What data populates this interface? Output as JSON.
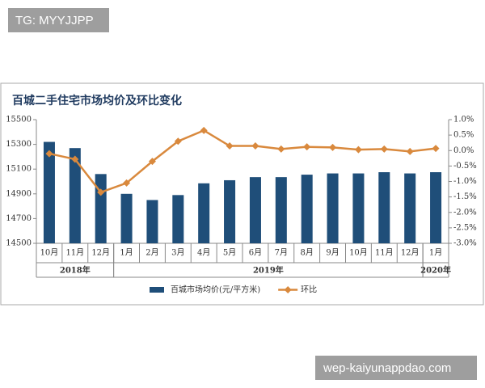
{
  "watermarks": [
    "TG: MYYJJPP",
    "wep-kaiyunappdao.com"
  ],
  "chart_data": {
    "type": "bar-line",
    "title": "百城二手住宅市场均价及环比变化",
    "categories": [
      "10月",
      "11月",
      "12月",
      "1月",
      "2月",
      "3月",
      "4月",
      "5月",
      "6月",
      "7月",
      "8月",
      "9月",
      "10月",
      "11月",
      "12月",
      "1月"
    ],
    "x_groups": [
      {
        "label": "2018年",
        "count": 3
      },
      {
        "label": "2019年",
        "count": 12
      },
      {
        "label": "2020年",
        "count": 1
      }
    ],
    "series": [
      {
        "name": "百城市场均价(元/平方米)",
        "type": "bar",
        "color": "#1f4e79",
        "values": [
          15320,
          15270,
          15060,
          14900,
          14850,
          14890,
          14985,
          15010,
          15035,
          15035,
          15055,
          15065,
          15065,
          15075,
          15065,
          15075
        ]
      },
      {
        "name": "环比",
        "type": "line",
        "axis": "y2",
        "color": "#d9893d",
        "values": [
          -0.1,
          -0.28,
          -1.35,
          -1.05,
          -0.35,
          0.3,
          0.65,
          0.15,
          0.15,
          0.05,
          0.12,
          0.1,
          0.03,
          0.05,
          -0.03,
          0.07
        ]
      }
    ],
    "ylim": [
      14500,
      15500
    ],
    "yticks": [
      14500,
      14700,
      14900,
      15100,
      15300,
      15500
    ],
    "y2lim": [
      -3.0,
      1.0
    ],
    "y2ticks": [
      {
        "value": -3.0,
        "label": "-3.0%"
      },
      {
        "value": -2.5,
        "label": "-2.5%"
      },
      {
        "value": -2.0,
        "label": "-2.0%"
      },
      {
        "value": -1.5,
        "label": "-1.5%"
      },
      {
        "value": -1.0,
        "label": "-1.0%"
      },
      {
        "value": -0.5,
        "label": "-0.5%"
      },
      {
        "value": 0.0,
        "label": "0.0%"
      },
      {
        "value": 0.5,
        "label": "0.5%"
      },
      {
        "value": 1.0,
        "label": "1.0%"
      }
    ],
    "grid": false,
    "legend": "bottom"
  }
}
